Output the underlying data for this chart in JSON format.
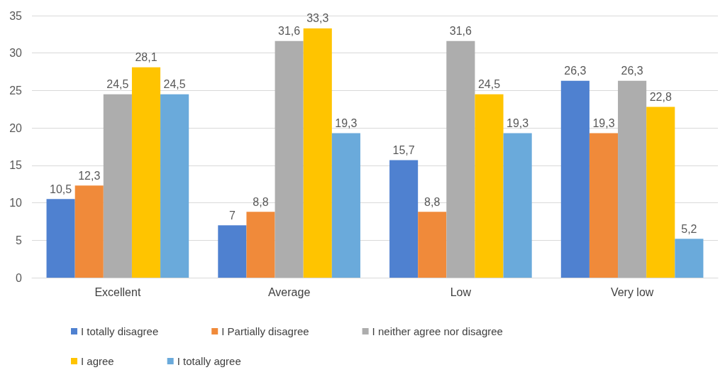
{
  "chart_data": {
    "type": "bar",
    "categories": [
      "Excellent",
      "Average",
      "Low",
      "Very low"
    ],
    "series": [
      {
        "name": "I totally disagree",
        "color": "#4f81d0",
        "values": [
          10.5,
          7,
          15.7,
          26.3
        ],
        "value_labels": [
          "10,5",
          "7",
          "15,7",
          "26,3"
        ]
      },
      {
        "name": "I Partially disagree",
        "color": "#f08a3a",
        "values": [
          12.3,
          8.8,
          8.8,
          19.3
        ],
        "value_labels": [
          "12,3",
          "8,8",
          "8,8",
          "19,3"
        ]
      },
      {
        "name": "I neither agree nor disagree",
        "color": "#adadad",
        "values": [
          24.5,
          31.6,
          31.6,
          26.3
        ],
        "value_labels": [
          "24,5",
          "31,6",
          "31,6",
          "26,3"
        ]
      },
      {
        "name": "I agree",
        "color": "#ffc400",
        "values": [
          28.1,
          33.3,
          24.5,
          22.8
        ],
        "value_labels": [
          "28,1",
          "33,3",
          "24,5",
          "22,8"
        ]
      },
      {
        "name": "I totally agree",
        "color": "#6aaadb",
        "values": [
          24.5,
          19.3,
          19.3,
          5.2
        ],
        "value_labels": [
          "24,5",
          "19,3",
          "19,3",
          "5,2"
        ]
      }
    ],
    "ylim": [
      0,
      35
    ],
    "yticks": [
      0,
      5,
      10,
      15,
      20,
      25,
      30,
      35
    ],
    "grid": "y",
    "legend": "bottom"
  }
}
